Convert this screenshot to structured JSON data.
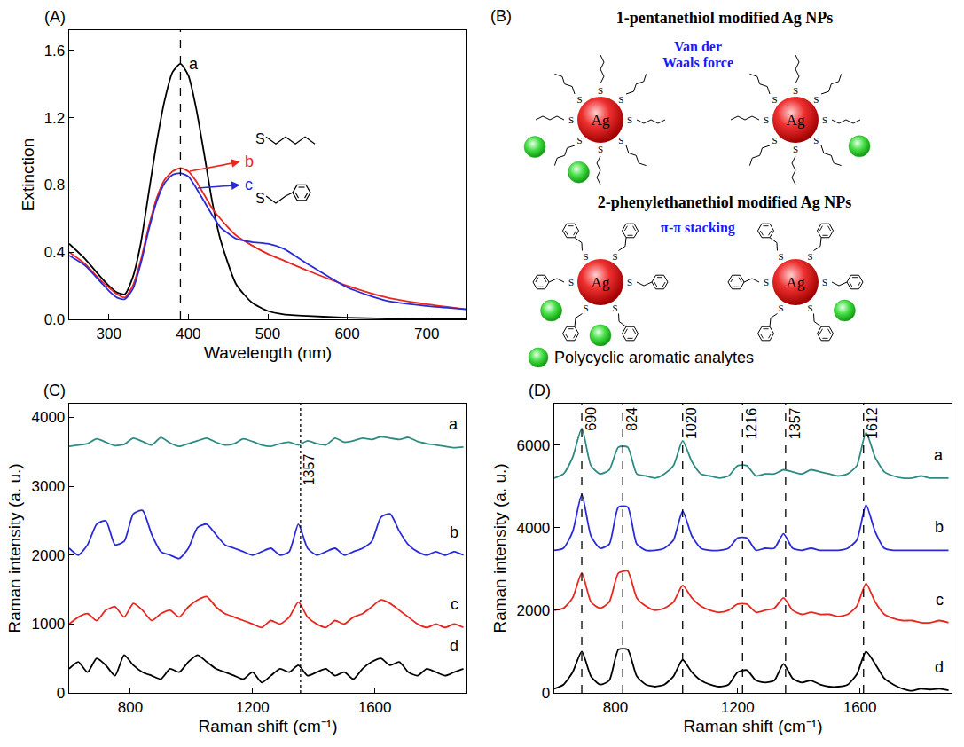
{
  "chart_data": [
    {
      "type": "line",
      "panel": "(A)",
      "x_label": "Wavelength (nm)",
      "y_label": "Extinction",
      "xlim": [
        250,
        750
      ],
      "xticks": [
        300,
        400,
        500,
        600,
        700
      ],
      "ylim": [
        0,
        1.72
      ],
      "yticks": [
        {
          "value": 0,
          "label": "0.0"
        },
        0.4,
        0.8,
        1.2,
        1.6
      ],
      "grid": false,
      "x": [
        250,
        270,
        290,
        300,
        310,
        320,
        330,
        340,
        350,
        360,
        370,
        380,
        390,
        400,
        410,
        420,
        430,
        440,
        460,
        480,
        500,
        520,
        550,
        600,
        650,
        700,
        750
      ],
      "series": [
        {
          "name": "a",
          "color": "#000000",
          "values": [
            0.45,
            0.36,
            0.25,
            0.2,
            0.16,
            0.15,
            0.25,
            0.45,
            0.75,
            1.05,
            1.3,
            1.47,
            1.52,
            1.45,
            1.25,
            0.98,
            0.7,
            0.48,
            0.21,
            0.1,
            0.05,
            0.03,
            0.02,
            0.01,
            0.005,
            0,
            0
          ]
        },
        {
          "name": "b",
          "color": "#e8271f",
          "values": [
            0.4,
            0.33,
            0.23,
            0.19,
            0.15,
            0.13,
            0.2,
            0.35,
            0.55,
            0.72,
            0.83,
            0.88,
            0.9,
            0.88,
            0.82,
            0.74,
            0.66,
            0.6,
            0.5,
            0.44,
            0.39,
            0.35,
            0.29,
            0.2,
            0.13,
            0.09,
            0.06
          ]
        },
        {
          "name": "c",
          "color": "#2a2ad8",
          "values": [
            0.38,
            0.32,
            0.22,
            0.17,
            0.13,
            0.12,
            0.18,
            0.33,
            0.53,
            0.7,
            0.81,
            0.86,
            0.87,
            0.85,
            0.78,
            0.7,
            0.62,
            0.55,
            0.48,
            0.46,
            0.45,
            0.42,
            0.33,
            0.19,
            0.11,
            0.08,
            0.06
          ]
        }
      ],
      "annotations": [
        "S",
        "S"
      ],
      "reference_lines": [
        {
          "x": 390,
          "line_style": "dash"
        }
      ]
    },
    {
      "type": "line",
      "panel": "(C)",
      "x_label": "Raman shift (cm⁻¹)",
      "y_label": "Raman intensity (a. u.)",
      "xlim": [
        600,
        1900
      ],
      "xticks": [
        800,
        1200,
        1600
      ],
      "ylim": [
        0,
        4200
      ],
      "yticks": [
        0,
        1000,
        2000,
        3000,
        4000
      ],
      "grid": false,
      "x": [
        600,
        630,
        660,
        690,
        720,
        750,
        780,
        810,
        840,
        870,
        900,
        930,
        960,
        990,
        1020,
        1050,
        1080,
        1110,
        1140,
        1170,
        1200,
        1230,
        1260,
        1290,
        1320,
        1350,
        1380,
        1410,
        1440,
        1470,
        1500,
        1530,
        1560,
        1590,
        1620,
        1650,
        1680,
        1710,
        1740,
        1770,
        1800,
        1830,
        1860,
        1890
      ],
      "series": [
        {
          "name": "a",
          "color": "#2e8b84",
          "values": [
            3580,
            3600,
            3620,
            3690,
            3640,
            3590,
            3610,
            3700,
            3650,
            3600,
            3710,
            3630,
            3580,
            3620,
            3660,
            3700,
            3640,
            3600,
            3620,
            3690,
            3650,
            3600,
            3580,
            3620,
            3640,
            3600,
            3660,
            3620,
            3600,
            3700,
            3640,
            3660,
            3700,
            3680,
            3720,
            3700,
            3680,
            3710,
            3650,
            3620,
            3600,
            3580,
            3560,
            3570
          ]
        },
        {
          "name": "b",
          "color": "#2a2ad8",
          "values": [
            2100,
            2000,
            2150,
            2450,
            2500,
            2150,
            2200,
            2600,
            2650,
            2300,
            2050,
            2000,
            1950,
            2100,
            2400,
            2450,
            2300,
            2150,
            2100,
            2050,
            2000,
            2050,
            2100,
            2000,
            2050,
            2450,
            2100,
            2000,
            2050,
            2100,
            2000,
            2050,
            2100,
            2200,
            2550,
            2600,
            2350,
            2150,
            2050,
            2000,
            2050,
            2000,
            2050,
            2000
          ]
        },
        {
          "name": "c",
          "color": "#e8271f",
          "values": [
            1000,
            1100,
            1150,
            1050,
            1200,
            1250,
            1100,
            1300,
            1200,
            1050,
            1150,
            1200,
            1100,
            1250,
            1350,
            1400,
            1250,
            1150,
            1100,
            1050,
            1000,
            950,
            1050,
            1000,
            1100,
            1320,
            1100,
            1000,
            950,
            1050,
            1000,
            1100,
            1150,
            1250,
            1350,
            1300,
            1200,
            1100,
            1000,
            950,
            1000,
            950,
            1000,
            950
          ]
        },
        {
          "name": "d",
          "color": "#000000",
          "values": [
            350,
            450,
            300,
            500,
            400,
            250,
            550,
            400,
            300,
            250,
            200,
            350,
            300,
            450,
            550,
            450,
            350,
            300,
            250,
            200,
            300,
            150,
            250,
            350,
            300,
            400,
            250,
            300,
            350,
            250,
            300,
            200,
            350,
            450,
            500,
            400,
            450,
            300,
            250,
            350,
            300,
            250,
            300,
            350
          ]
        }
      ],
      "reference_lines": [
        {
          "x": 1357,
          "line_style": "dot"
        }
      ]
    },
    {
      "type": "line",
      "panel": "(D)",
      "x_label": "Raman shift (cm⁻¹)",
      "y_label": "Raman intensity (a. u.)",
      "xlim": [
        600,
        1900
      ],
      "xticks": [
        800,
        1200,
        1600
      ],
      "ylim": [
        0,
        7000
      ],
      "yticks": [
        0,
        2000,
        4000,
        6000
      ],
      "grid": false,
      "x": [
        600,
        630,
        660,
        690,
        720,
        750,
        780,
        810,
        840,
        870,
        900,
        930,
        960,
        990,
        1020,
        1050,
        1080,
        1110,
        1140,
        1170,
        1200,
        1230,
        1260,
        1290,
        1320,
        1350,
        1380,
        1410,
        1440,
        1470,
        1500,
        1530,
        1560,
        1590,
        1620,
        1650,
        1680,
        1710,
        1740,
        1770,
        1800,
        1830,
        1860,
        1890
      ],
      "series": [
        {
          "name": "a",
          "color": "#2e8b84",
          "values": [
            5200,
            5300,
            5700,
            6400,
            5500,
            5300,
            5400,
            5950,
            5950,
            5300,
            5250,
            5200,
            5300,
            5500,
            6100,
            5600,
            5300,
            5250,
            5200,
            5250,
            5500,
            5500,
            5250,
            5300,
            5300,
            5400,
            5350,
            5300,
            5400,
            5350,
            5300,
            5250,
            5300,
            5500,
            6300,
            5700,
            5350,
            5250,
            5200,
            5200,
            5250,
            5200,
            5200,
            5200
          ]
        },
        {
          "name": "b",
          "color": "#2a2ad8",
          "values": [
            3450,
            3500,
            3900,
            4800,
            3800,
            3500,
            3600,
            4500,
            4500,
            3600,
            3450,
            3450,
            3500,
            3700,
            4400,
            3800,
            3500,
            3450,
            3450,
            3500,
            3750,
            3750,
            3450,
            3500,
            3500,
            3850,
            3500,
            3450,
            3500,
            3450,
            3450,
            3450,
            3500,
            3700,
            4550,
            3900,
            3500,
            3450,
            3450,
            3450,
            3450,
            3450,
            3450,
            3450
          ]
        },
        {
          "name": "c",
          "color": "#e8271f",
          "values": [
            2000,
            2050,
            2300,
            2900,
            2200,
            2050,
            2200,
            2900,
            2950,
            2300,
            2100,
            2000,
            2050,
            2200,
            2600,
            2300,
            2100,
            2000,
            1950,
            2000,
            2150,
            2150,
            1950,
            2000,
            2050,
            2300,
            2000,
            1900,
            1950,
            1900,
            1900,
            1850,
            1900,
            2100,
            2650,
            2200,
            1900,
            1800,
            1750,
            1750,
            1700,
            1700,
            1750,
            1700
          ]
        },
        {
          "name": "d",
          "color": "#000000",
          "values": [
            100,
            200,
            500,
            1000,
            400,
            200,
            300,
            1050,
            1050,
            400,
            200,
            150,
            200,
            400,
            800,
            500,
            300,
            200,
            150,
            200,
            500,
            550,
            300,
            250,
            300,
            700,
            350,
            250,
            300,
            200,
            150,
            150,
            200,
            450,
            1000,
            700,
            350,
            200,
            100,
            50,
            100,
            80,
            100,
            60
          ]
        }
      ],
      "reference_lines": [
        {
          "x": 690,
          "line_style": "dash"
        },
        {
          "x": 824,
          "line_style": "dash"
        },
        {
          "x": 1020,
          "line_style": "dash"
        },
        {
          "x": 1216,
          "line_style": "dash"
        },
        {
          "x": 1357,
          "line_style": "dash"
        },
        {
          "x": 1612,
          "line_style": "dash"
        }
      ]
    }
  ],
  "diagram": {
    "panel": "(B)",
    "groups": [
      {
        "title": "1-pentanethiol modified Ag NPs",
        "interaction": "Van der Waals force"
      },
      {
        "title": "2-phenylethanethiol modified Ag NPs",
        "interaction": "π-π stacking"
      }
    ],
    "particle_label": "Ag",
    "ligand_atom": "S",
    "key_text": "Polycyclic aromatic analytes"
  }
}
